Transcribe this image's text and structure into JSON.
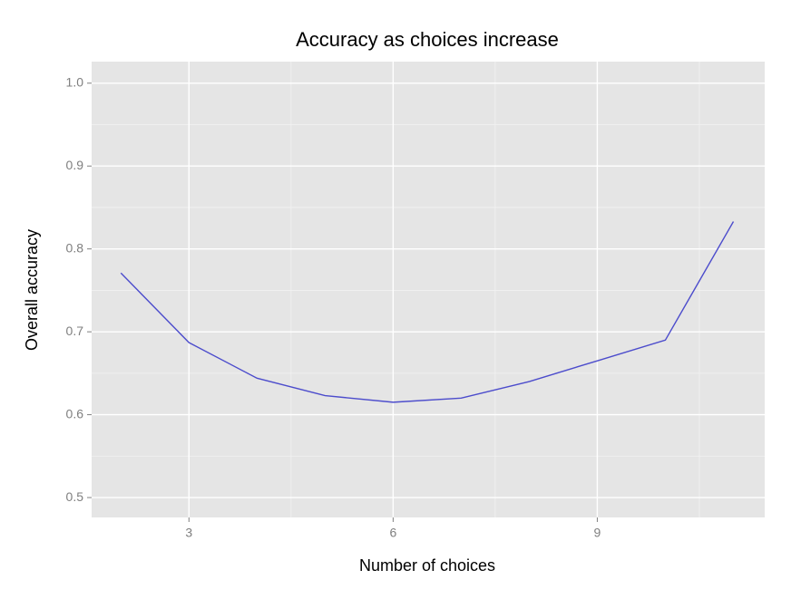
{
  "chart_data": {
    "type": "line",
    "title": "Accuracy as choices increase",
    "x_label": "Number of choices",
    "y_label": "Overall accuracy",
    "x": [
      2,
      3,
      4,
      5,
      6,
      7,
      8,
      9,
      10,
      11
    ],
    "series": [
      {
        "name": "accuracy",
        "color": "#4c4ccc",
        "values": [
          0.771,
          0.687,
          0.644,
          0.623,
          0.615,
          0.62,
          0.64,
          0.665,
          0.69,
          0.833
        ]
      }
    ],
    "xlim": [
      1.57,
      11.46
    ],
    "ylim": [
      0.476,
      1.026
    ],
    "xticks": [
      3,
      6,
      9
    ],
    "yticks": [
      0.5,
      0.6,
      0.7,
      0.8,
      0.9,
      {
        "value": 1,
        "label": "1.0"
      }
    ],
    "minor_xticks": [
      4.5,
      7.5,
      10.5
    ],
    "minor_yticks": [
      0.55,
      0.65,
      0.75,
      0.85,
      0.95
    ],
    "grid": true,
    "legend": false
  }
}
